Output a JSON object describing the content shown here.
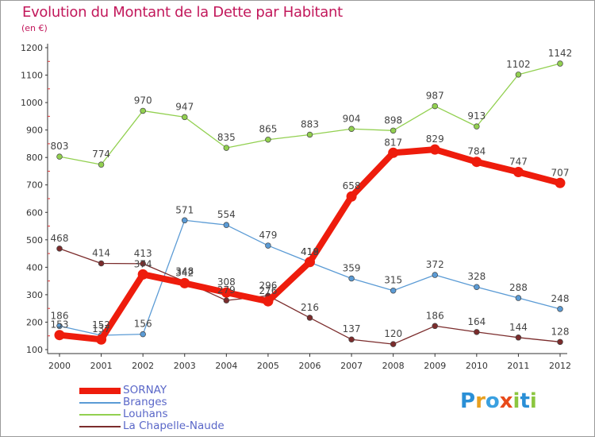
{
  "header": {
    "title": "Evolution du Montant de la Dette par Habitant",
    "subtitle": "(en €)"
  },
  "colors": {
    "title": "#c2185b",
    "axis": "#333333",
    "tick_marks": "#e03030",
    "legend_text": "#5a67c8",
    "value_labels": "#444444"
  },
  "logo": {
    "letters": [
      "P",
      "r",
      "o",
      "x",
      "i",
      "t",
      "i"
    ],
    "letter_colors": [
      "#2a8fd6",
      "#e8a020",
      "#3aa0e0",
      "#e84a1a",
      "#8cc63f",
      "#2a8fd6",
      "#8cc63f"
    ]
  },
  "chart_data": {
    "type": "line",
    "x": [
      "2000",
      "2001",
      "2002",
      "2003",
      "2004",
      "2005",
      "2006",
      "2007",
      "2008",
      "2009",
      "2010",
      "2011",
      "2012"
    ],
    "ylim": [
      100,
      1200
    ],
    "yticks": [
      "100",
      "200",
      "300",
      "400",
      "500",
      "600",
      "700",
      "800",
      "900",
      "1000",
      "1100",
      "1200"
    ],
    "grid": false,
    "legend_position": "bottom-left",
    "series": [
      {
        "name": "SORNAY",
        "color": "#ee1c0c",
        "values": [
          153,
          137,
          374,
          342,
          308,
          276,
          419,
          658,
          817,
          829,
          784,
          747,
          707
        ],
        "labels": [
          "153",
          "137",
          "374",
          "342",
          "308",
          "276",
          "419",
          "658",
          "817",
          "829",
          "784",
          "747",
          "707"
        ],
        "emphasis": true
      },
      {
        "name": "Branges",
        "color": "#5b9bd5",
        "values": [
          186,
          152,
          156,
          571,
          554,
          479,
          418,
          359,
          315,
          372,
          328,
          288,
          248
        ],
        "labels": [
          "186",
          "152",
          "156",
          "571",
          "554",
          "479",
          "418",
          "359",
          "315",
          "372",
          "328",
          "288",
          "248"
        ]
      },
      {
        "name": "Louhans",
        "color": "#92d050",
        "values": [
          803,
          774,
          970,
          947,
          835,
          865,
          883,
          904,
          898,
          987,
          913,
          1102,
          1142
        ],
        "labels": [
          "803",
          "774",
          "970",
          "947",
          "835",
          "865",
          "883",
          "904",
          "898",
          "987",
          "913",
          "1102",
          "1142"
        ]
      },
      {
        "name": "La Chapelle-Naude",
        "color": "#7b2c2c",
        "values": [
          468,
          414,
          413,
          348,
          279,
          296,
          216,
          137,
          120,
          186,
          164,
          144,
          128
        ],
        "labels": [
          "468",
          "414",
          "413",
          "348",
          "279",
          "296",
          "216",
          "137",
          "120",
          "186",
          "164",
          "144",
          "128"
        ]
      }
    ]
  }
}
